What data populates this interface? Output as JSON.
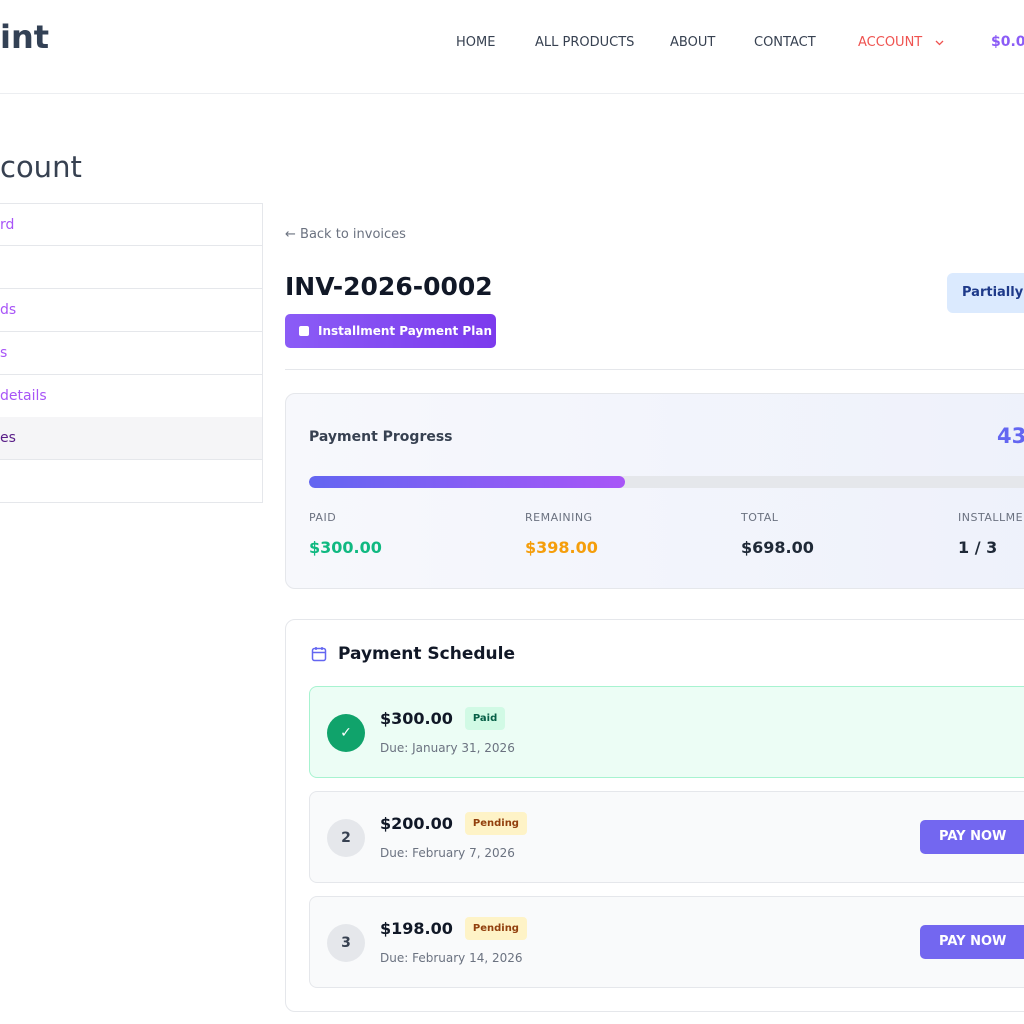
{
  "header": {
    "logo": "int",
    "nav": [
      "HOME",
      "ALL PRODUCTS",
      "ABOUT",
      "CONTACT",
      "ACCOUNT"
    ],
    "cart": "$0.0"
  },
  "sidebar": {
    "title": "count",
    "items": [
      "rd",
      "ds",
      "s",
      "details",
      "es"
    ]
  },
  "invoice": {
    "back": "← Back to invoices",
    "number": "INV-2026-0002",
    "tag": "Installment Payment Plan",
    "status": "Partially I"
  },
  "progress": {
    "title": "Payment Progress",
    "percent": 43,
    "stats": [
      {
        "label": "PAID",
        "value": "$300.00"
      },
      {
        "label": "REMAINING",
        "value": "$398.00"
      },
      {
        "label": "TOTAL",
        "value": "$698.00"
      },
      {
        "label": "INSTALLMEI",
        "value": "1 / 3"
      }
    ]
  },
  "schedule": {
    "title": "Payment Schedule",
    "items": [
      {
        "amount": "$300.00",
        "status": "Paid",
        "due": "Due: January 31, 2026"
      },
      {
        "index": "2",
        "amount": "$200.00",
        "status": "Pending",
        "due": "Due: February 7, 2026",
        "action": "PAY NOW"
      },
      {
        "index": "3",
        "amount": "$198.00",
        "status": "Pending",
        "due": "Due: February 14, 2026",
        "action": "PAY NOW"
      }
    ]
  }
}
